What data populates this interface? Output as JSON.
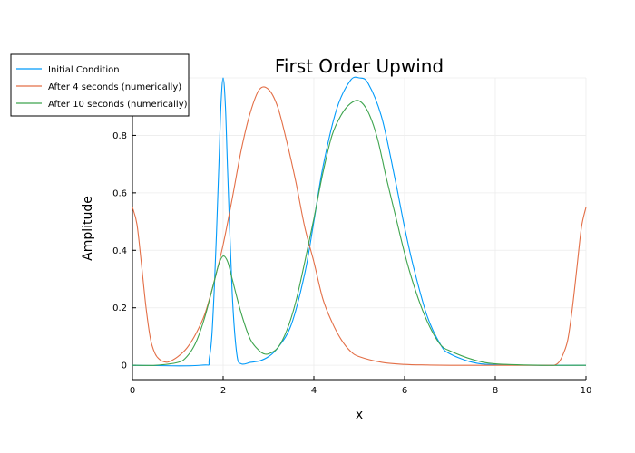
{
  "chart_data": {
    "type": "line",
    "title": "First Order Upwind",
    "xlabel": "x",
    "ylabel": "Amplitude",
    "xlim": [
      0,
      10
    ],
    "ylim": [
      -0.05,
      1.0
    ],
    "xticks": [
      0,
      2,
      4,
      6,
      8,
      10
    ],
    "yticks": [
      0,
      0.2,
      0.4,
      0.6,
      0.8
    ],
    "grid": true,
    "legend_position": "top-left",
    "series": [
      {
        "name": "Initial Condition",
        "color": "#009AFA",
        "x": [
          0,
          1.5,
          1.7,
          1.8,
          1.9,
          1.95,
          2.0,
          2.05,
          2.1,
          2.2,
          2.3,
          2.4,
          2.6,
          2.8,
          3.0,
          3.2,
          3.5,
          3.8,
          4.0,
          4.2,
          4.5,
          4.8,
          5.0,
          5.2,
          5.5,
          5.8,
          6.0,
          6.2,
          6.5,
          6.8,
          7.0,
          7.5,
          8.0,
          9.0,
          10.0
        ],
        "y": [
          0,
          0.0,
          0.03,
          0.25,
          0.67,
          0.9,
          1.0,
          0.9,
          0.67,
          0.25,
          0.04,
          0.005,
          0.01,
          0.015,
          0.03,
          0.06,
          0.14,
          0.32,
          0.5,
          0.69,
          0.89,
          0.99,
          1.0,
          0.98,
          0.86,
          0.64,
          0.48,
          0.34,
          0.17,
          0.07,
          0.04,
          0.01,
          0.002,
          0.0,
          0.0
        ]
      },
      {
        "name": "After 4 seconds (numerically)",
        "color": "#E36F47",
        "x": [
          0,
          0.1,
          0.2,
          0.3,
          0.4,
          0.5,
          0.6,
          0.7,
          0.8,
          1.0,
          1.2,
          1.4,
          1.6,
          1.8,
          2.0,
          2.2,
          2.4,
          2.6,
          2.8,
          3.0,
          3.2,
          3.4,
          3.6,
          3.8,
          4.0,
          4.2,
          4.4,
          4.6,
          4.8,
          5.0,
          5.5,
          6.0,
          6.5,
          7.0,
          8.0,
          9.0,
          9.2,
          9.3,
          9.4,
          9.5,
          9.6,
          9.7,
          9.8,
          9.9,
          10.0
        ],
        "y": [
          0.55,
          0.49,
          0.35,
          0.2,
          0.09,
          0.04,
          0.02,
          0.012,
          0.012,
          0.03,
          0.06,
          0.11,
          0.18,
          0.29,
          0.42,
          0.58,
          0.75,
          0.88,
          0.96,
          0.96,
          0.9,
          0.78,
          0.64,
          0.48,
          0.36,
          0.23,
          0.15,
          0.09,
          0.05,
          0.03,
          0.01,
          0.003,
          0.001,
          0.0,
          0.0,
          0.0,
          0.0,
          0.0,
          0.01,
          0.04,
          0.09,
          0.2,
          0.34,
          0.48,
          0.55
        ]
      },
      {
        "name": "After 10 seconds (numerically)",
        "color": "#3EA44E",
        "x": [
          0,
          0.5,
          1.0,
          1.2,
          1.4,
          1.6,
          1.8,
          1.9,
          2.0,
          2.1,
          2.2,
          2.4,
          2.6,
          2.8,
          2.9,
          3.0,
          3.2,
          3.4,
          3.6,
          3.8,
          4.0,
          4.2,
          4.4,
          4.6,
          4.8,
          5.0,
          5.2,
          5.4,
          5.6,
          5.8,
          6.0,
          6.2,
          6.4,
          6.6,
          6.8,
          7.0,
          7.5,
          8.0,
          9.0,
          10.0
        ],
        "y": [
          0,
          0.0,
          0.01,
          0.03,
          0.08,
          0.17,
          0.29,
          0.35,
          0.38,
          0.36,
          0.3,
          0.18,
          0.09,
          0.05,
          0.04,
          0.04,
          0.06,
          0.12,
          0.22,
          0.36,
          0.51,
          0.67,
          0.8,
          0.87,
          0.91,
          0.92,
          0.88,
          0.79,
          0.65,
          0.52,
          0.39,
          0.28,
          0.19,
          0.12,
          0.07,
          0.05,
          0.02,
          0.005,
          0.0,
          0.0
        ]
      }
    ]
  }
}
